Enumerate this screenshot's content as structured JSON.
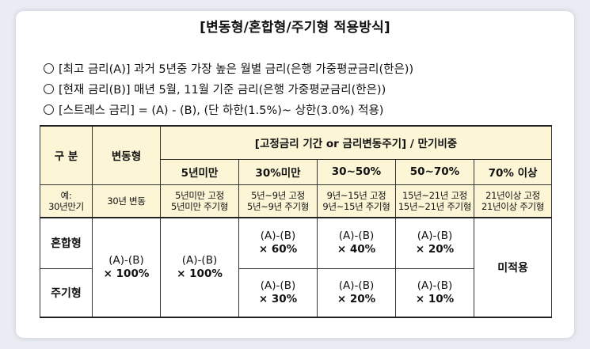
{
  "title": "[변동형/혼합형/주기형 적용방식]",
  "notes": [
    "[최고 금리(A)] 과거 5년중 가장 높은 월별 금리(은행 가중평균금리(한은))",
    "[현재 금리(B)] 매년 5월, 11월 기준 금리(은행 가중평균금리(한은))",
    "[스트레스 금리] = (A) - (B), (단 하한(1.5%)~ 상한(3.0%) 적용)"
  ],
  "table": {
    "col_gubun": "구  분",
    "col_variable": "변동형",
    "col_group": "[고정금리  기간 or  금리변동주기] / 만기비중",
    "sub_headers": [
      "5년미만",
      "30%미만",
      "30~50%",
      "50~70%",
      "70% 이상"
    ],
    "example_row": {
      "label_line1": "예:",
      "label_line2": "30년만기",
      "variable": "30년 변동",
      "cells": [
        {
          "l1": "5년미만 고정",
          "l2": "5년미만 주기형"
        },
        {
          "l1": "5년~9년 고정",
          "l2": "5년~9년 주기형"
        },
        {
          "l1": "9년~15년 고정",
          "l2": "9년~15년 주기형"
        },
        {
          "l1": "15년~21년 고정",
          "l2": "15년~21년 주기형"
        },
        {
          "l1": "21년이상 고정",
          "l2": "21년이상 주기형"
        }
      ]
    },
    "row_mixed": "혼합형",
    "row_periodic": "주기형",
    "formula": "(A)-(B)",
    "variable_value": "× 100%",
    "under5_value": "× 100%",
    "mixed_values": [
      "× 60%",
      "× 40%",
      "× 20%"
    ],
    "periodic_values": [
      "× 30%",
      "× 20%",
      "× 10%"
    ],
    "not_applied": "미적용"
  },
  "colors": {
    "header_bg": "#fcf6d6",
    "page_bg": "#e9ecf2",
    "card_bg": "#ffffff"
  }
}
